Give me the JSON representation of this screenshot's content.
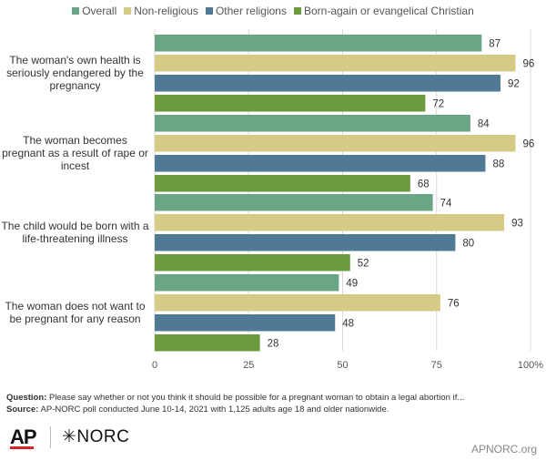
{
  "chart_data": {
    "type": "bar",
    "orientation": "horizontal",
    "categories": [
      "The woman's own health is seriously endangered by the pregnancy",
      "The woman becomes pregnant as a result of rape or incest",
      "The child would be born with a life-threatening illness",
      "The woman does not want to be pregnant for any reason"
    ],
    "series": [
      {
        "name": "Overall",
        "color": "#6aa586",
        "values": [
          87,
          84,
          74,
          49
        ]
      },
      {
        "name": "Non-religious",
        "color": "#d6cb86",
        "values": [
          96,
          96,
          93,
          76
        ]
      },
      {
        "name": "Other religions",
        "color": "#4f7995",
        "values": [
          92,
          88,
          80,
          48
        ]
      },
      {
        "name": "Born-again or evangelical Christian",
        "color": "#6e9a3e",
        "values": [
          72,
          68,
          52,
          28
        ]
      }
    ],
    "xlim": [
      0,
      100
    ],
    "x_ticks": [
      "0",
      "25",
      "50",
      "75",
      "100%"
    ],
    "legend_position": "top",
    "grid": true
  },
  "notes": {
    "question_label": "Question:",
    "question_text": "Please say whether or not you think it should be possible for a pregnant woman to obtain a legal abortion if...",
    "source_label": "Source:",
    "source_text": "AP-NORC poll conducted June 10-14, 2021 with 1,125 adults age 18 and older nationwide."
  },
  "branding": {
    "ap": "AP",
    "norc": "NORC",
    "norc_mark": "✳",
    "site": "APNORC.org"
  }
}
